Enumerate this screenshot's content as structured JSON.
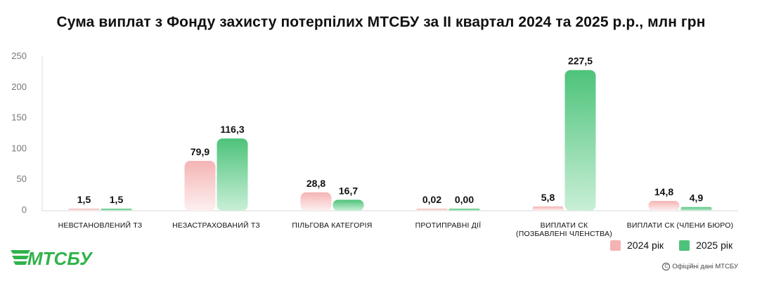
{
  "title": "Сума виплат з Фонду захисту потерпілих МТСБУ за ІІ квартал 2024 та 2025 р.р., млн грн",
  "chart_data": {
    "type": "bar",
    "categories": [
      [
        "НЕВСТАНОВЛЕНИЙ ТЗ"
      ],
      [
        "НЕЗАСТРАХОВАНИЙ ТЗ"
      ],
      [
        "ПІЛЬГОВА КАТЕГОРІЯ"
      ],
      [
        "ПРОТИПРАВНІ ДІЇ"
      ],
      [
        "ВИПЛАТИ СК",
        "(ПОЗБАВЛЕНІ ЧЛЕНСТВА)"
      ],
      [
        "ВИПЛАТИ СК (ЧЛЕНИ БЮРО)"
      ]
    ],
    "series": [
      {
        "name": "2024 рік",
        "values": [
          1.5,
          79.9,
          28.8,
          0.02,
          5.8,
          14.8
        ],
        "labels": [
          "1,5",
          "79,9",
          "28,8",
          "0,02",
          "5,8",
          "14,8"
        ]
      },
      {
        "name": "2025 рік",
        "values": [
          1.5,
          116.3,
          16.7,
          0.0,
          227.5,
          4.9
        ],
        "labels": [
          "1,5",
          "116,3",
          "16,7",
          "0,00",
          "227,5",
          "4,9"
        ]
      }
    ],
    "ylim": [
      0,
      250
    ],
    "yticks": [
      0,
      50,
      100,
      150,
      200,
      250
    ],
    "grid": false,
    "legend_position": "bottom-right",
    "colors": {
      "s2024_top": "#f5b4b4",
      "s2024_bottom": "#fdf0f0",
      "s2025_top": "#4dc37a",
      "s2025_bottom": "#c9efd7"
    }
  },
  "logo_text": "МТСБУ",
  "logo_color": "#2fb34a",
  "source": "Офіційні дані МТСБУ"
}
